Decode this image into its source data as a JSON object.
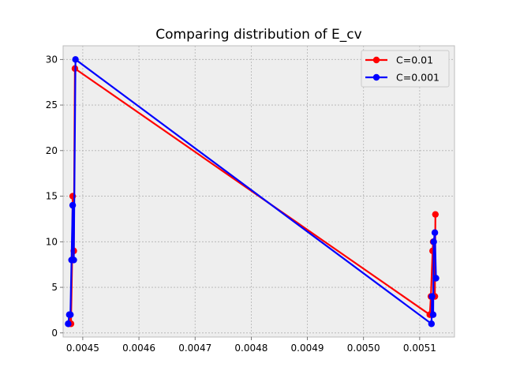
{
  "chart_data": {
    "type": "line",
    "title": "Comparing distribution of E_cv",
    "xlabel": "",
    "ylabel": "",
    "xlim": [
      0.004465,
      0.005162
    ],
    "ylim": [
      -0.45,
      31.5
    ],
    "x_ticks": [
      0.0045,
      0.0046,
      0.0047,
      0.0048,
      0.0049,
      0.005,
      0.0051
    ],
    "x_tick_labels": [
      "0.0045",
      "0.0046",
      "0.0047",
      "0.0048",
      "0.0049",
      "0.0050",
      "0.0051"
    ],
    "y_ticks": [
      0,
      5,
      10,
      15,
      20,
      25,
      30
    ],
    "y_tick_labels": [
      "0",
      "5",
      "10",
      "15",
      "20",
      "25",
      "30"
    ],
    "grid": true,
    "legend_position": "top-right",
    "series": [
      {
        "name": "C=0.01",
        "color": "#ff0000",
        "x": [
          0.004475,
          0.004477,
          0.004479,
          0.004481,
          0.004482,
          0.004484,
          0.004486,
          0.005118,
          0.00512,
          0.005123,
          0.005124,
          0.005127,
          0.005128
        ],
        "y": [
          1,
          2,
          1,
          8,
          15,
          9,
          29,
          2,
          4,
          9,
          10,
          4,
          13
        ]
      },
      {
        "name": "C=0.001",
        "color": "#0000ff",
        "x": [
          0.004474,
          0.004476,
          0.004478,
          0.00448,
          0.004482,
          0.004484,
          0.004487,
          0.005121,
          0.005122,
          0.005124,
          0.005125,
          0.005127,
          0.005129
        ],
        "y": [
          1,
          2,
          2,
          8,
          14,
          8,
          30,
          1,
          4,
          2,
          10,
          11,
          6
        ]
      }
    ]
  }
}
